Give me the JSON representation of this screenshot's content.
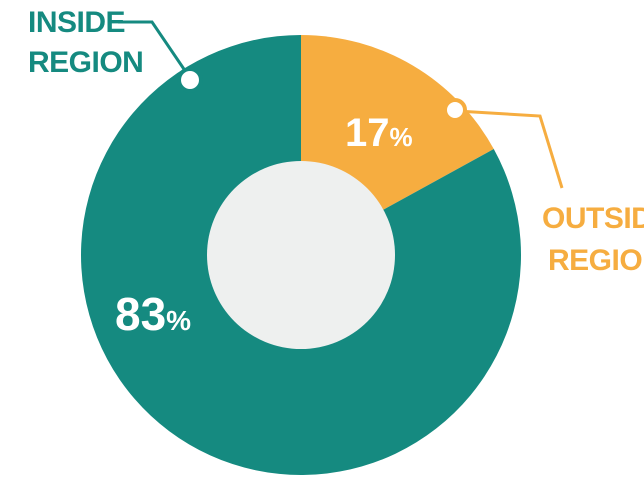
{
  "chart_data": {
    "type": "pie",
    "title": "",
    "categories": [
      "INSIDE REGION",
      "OUTSIDE REGION"
    ],
    "values": [
      83,
      17
    ],
    "slices": [
      {
        "label_line1": "INSIDE",
        "label_line2": "REGION",
        "value": 83,
        "value_text": "83",
        "unit": "%",
        "color": "#158a80"
      },
      {
        "label_line1": "OUTSIDE",
        "label_line2": "REGION",
        "value": 17,
        "value_text": "17",
        "unit": "%",
        "color": "#f6ad40"
      }
    ],
    "hole_color": "#eef0ef",
    "legend": "callouts"
  }
}
